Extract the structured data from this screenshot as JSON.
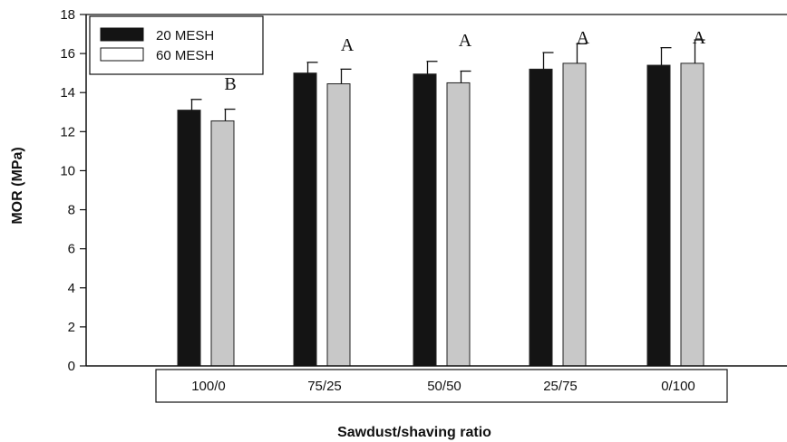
{
  "chart_data": {
    "type": "bar",
    "title": "",
    "xlabel": "Sawdust/shaving ratio",
    "ylabel": "MOR (MPa)",
    "ylim": [
      0,
      18
    ],
    "yticks": [
      "0",
      "2",
      "4",
      "6",
      "8",
      "10",
      "12",
      "14",
      "16",
      "18"
    ],
    "categories": [
      "100/0",
      "75/25",
      "50/50",
      "25/75",
      "0/100"
    ],
    "series": [
      {
        "name": "20 MESH",
        "color": "#141414",
        "values": [
          13.1,
          15.0,
          14.95,
          15.2,
          15.4
        ],
        "error": [
          0.55,
          0.55,
          0.65,
          0.85,
          0.9
        ]
      },
      {
        "name": "60 MESH",
        "color": "#c8c8c8",
        "values": [
          12.55,
          14.45,
          14.5,
          15.5,
          15.5
        ],
        "error": [
          0.6,
          0.75,
          0.6,
          1.0,
          1.2
        ]
      }
    ],
    "annotations": [
      "B",
      "A",
      "A",
      "A",
      "A"
    ],
    "legend_position": "top-left",
    "grid": false
  }
}
